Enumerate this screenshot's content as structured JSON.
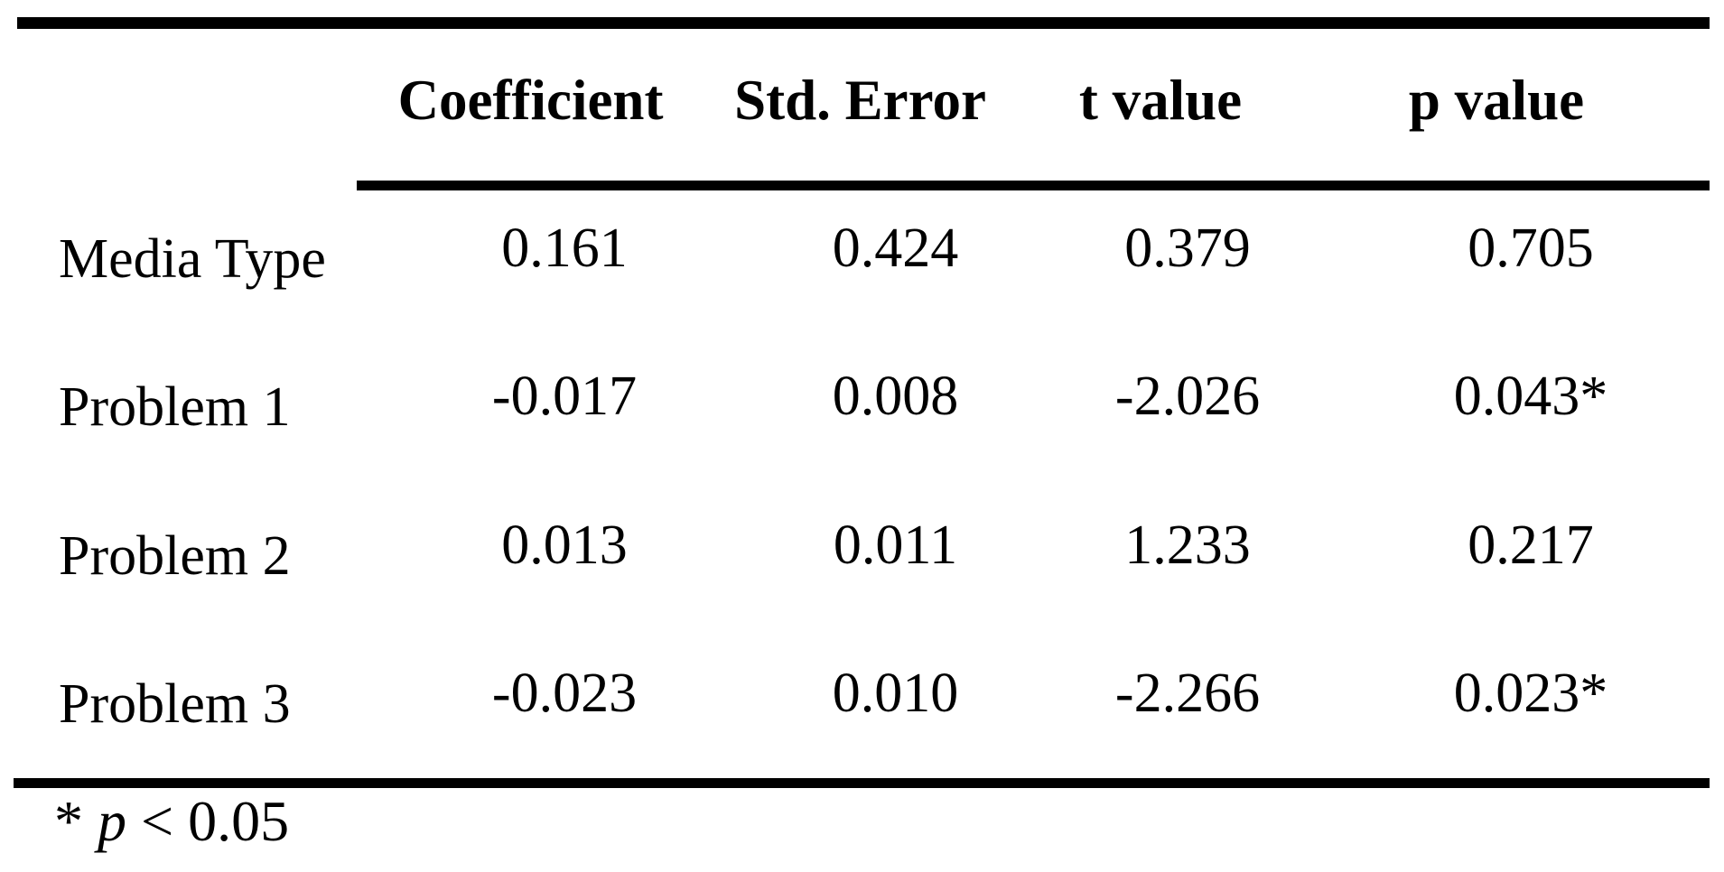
{
  "table": {
    "columns": [
      "Coefficient",
      "Std. Error",
      "t value",
      "p value"
    ],
    "rows": [
      {
        "label": "Media Type",
        "cells": [
          "0.161",
          "0.424",
          "0.379",
          "0.705"
        ]
      },
      {
        "label": "Problem 1",
        "cells": [
          "-0.017",
          "0.008",
          "-2.026",
          "0.043*"
        ]
      },
      {
        "label": "Problem 2",
        "cells": [
          "0.013",
          "0.011",
          "1.233",
          "0.217"
        ]
      },
      {
        "label": "Problem 3",
        "cells": [
          "-0.023",
          "0.010",
          "-2.266",
          "0.023*"
        ]
      }
    ],
    "footnote": {
      "marker": "* ",
      "var": "p",
      "rest": " < 0.05"
    }
  }
}
